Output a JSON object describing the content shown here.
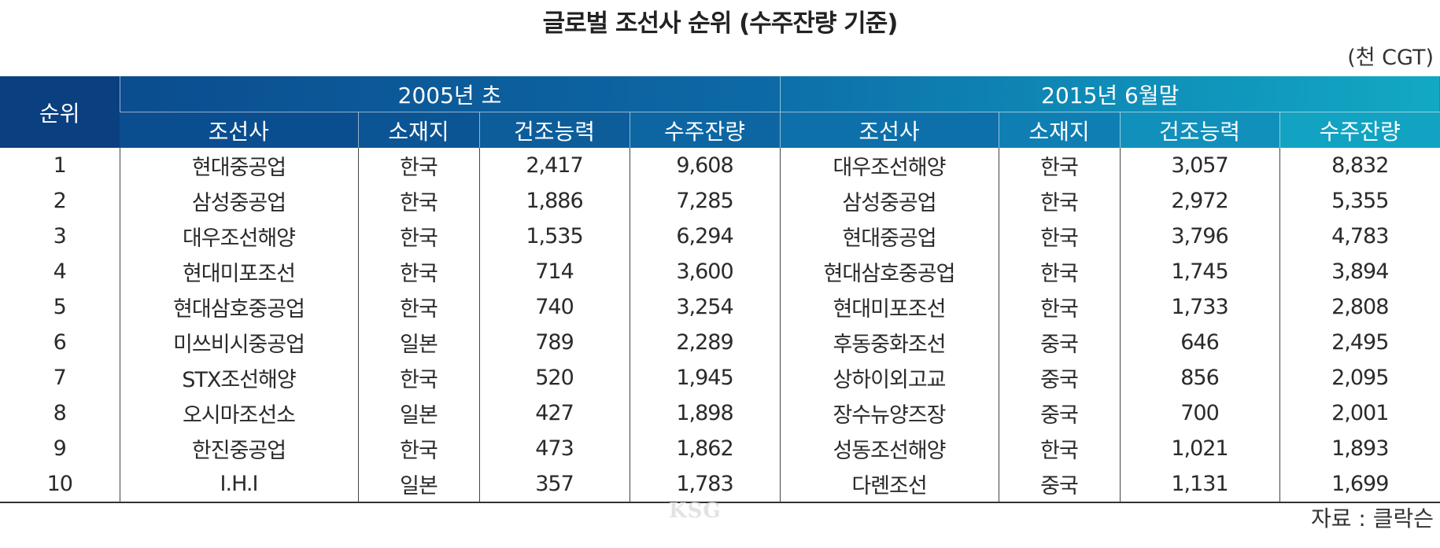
{
  "title": "글로벌 조선사 순위 (수주잔량 기준)",
  "unit": "(천 CGT)",
  "source": "자료 : 클락슨",
  "watermark": "KSG",
  "colors": {
    "header_dark": "#0a3f80",
    "header_mid": "#0d6aa6",
    "header_light": "#12a9c4"
  },
  "table": {
    "rank_header": "순위",
    "groups": [
      "2005년 초",
      "2015년 6월말"
    ],
    "subheaders": [
      "조선사",
      "소재지",
      "건조능력",
      "수주잔량",
      "조선사",
      "소재지",
      "건조능력",
      "수주잔량"
    ],
    "rows": [
      [
        "1",
        "현대중공업",
        "한국",
        "2,417",
        "9,608",
        "대우조선해양",
        "한국",
        "3,057",
        "8,832"
      ],
      [
        "2",
        "삼성중공업",
        "한국",
        "1,886",
        "7,285",
        "삼성중공업",
        "한국",
        "2,972",
        "5,355"
      ],
      [
        "3",
        "대우조선해양",
        "한국",
        "1,535",
        "6,294",
        "현대중공업",
        "한국",
        "3,796",
        "4,783"
      ],
      [
        "4",
        "현대미포조선",
        "한국",
        "714",
        "3,600",
        "현대삼호중공업",
        "한국",
        "1,745",
        "3,894"
      ],
      [
        "5",
        "현대삼호중공업",
        "한국",
        "740",
        "3,254",
        "현대미포조선",
        "한국",
        "1,733",
        "2,808"
      ],
      [
        "6",
        "미쓰비시중공업",
        "일본",
        "789",
        "2,289",
        "후동중화조선",
        "중국",
        "646",
        "2,495"
      ],
      [
        "7",
        "STX조선해양",
        "한국",
        "520",
        "1,945",
        "상하이외고교",
        "중국",
        "856",
        "2,095"
      ],
      [
        "8",
        "오시마조선소",
        "일본",
        "427",
        "1,898",
        "장수뉴양즈장",
        "중국",
        "700",
        "2,001"
      ],
      [
        "9",
        "한진중공업",
        "한국",
        "473",
        "1,862",
        "성동조선해양",
        "한국",
        "1,021",
        "1,893"
      ],
      [
        "10",
        "I.H.I",
        "일본",
        "357",
        "1,783",
        "다롄조선",
        "중국",
        "1,131",
        "1,699"
      ]
    ]
  }
}
